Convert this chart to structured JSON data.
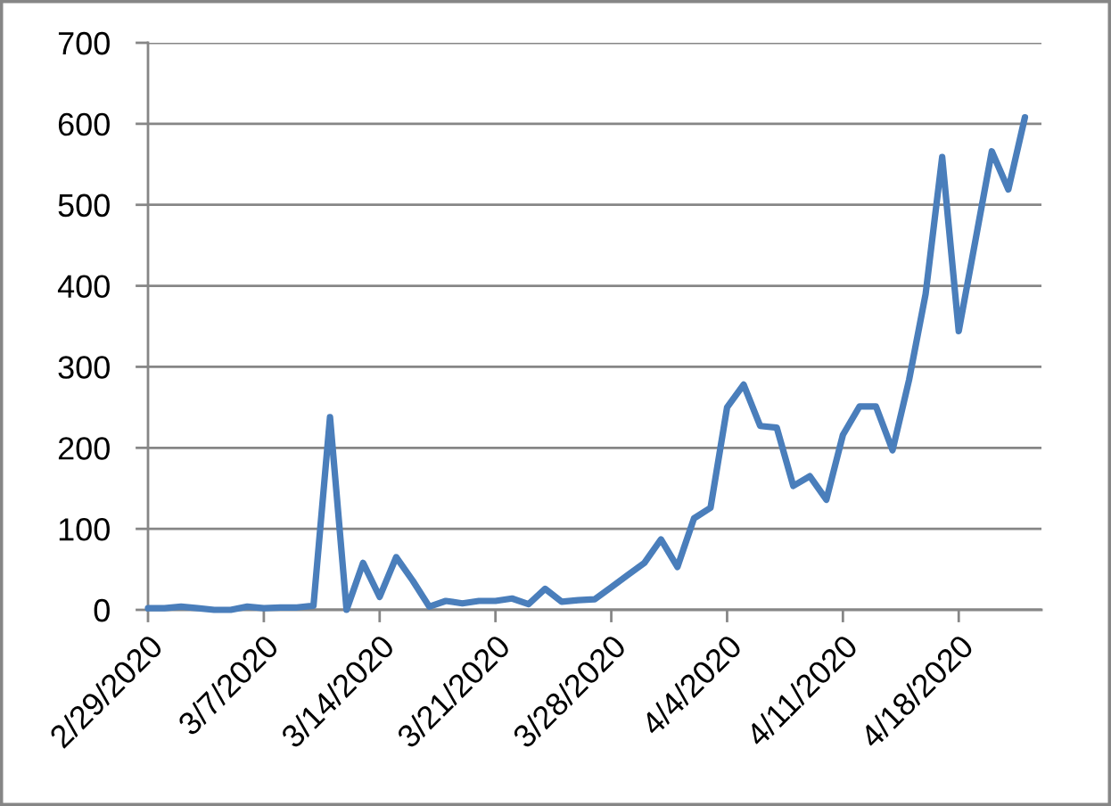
{
  "chart_data": {
    "type": "line",
    "x": [
      "2020-02-29",
      "2020-03-01",
      "2020-03-02",
      "2020-03-03",
      "2020-03-04",
      "2020-03-05",
      "2020-03-06",
      "2020-03-07",
      "2020-03-08",
      "2020-03-09",
      "2020-03-10",
      "2020-03-11",
      "2020-03-12",
      "2020-03-13",
      "2020-03-14",
      "2020-03-15",
      "2020-03-16",
      "2020-03-17",
      "2020-03-18",
      "2020-03-19",
      "2020-03-20",
      "2020-03-21",
      "2020-03-22",
      "2020-03-23",
      "2020-03-24",
      "2020-03-25",
      "2020-03-26",
      "2020-03-27",
      "2020-03-28",
      "2020-03-29",
      "2020-03-30",
      "2020-03-31",
      "2020-04-01",
      "2020-04-02",
      "2020-04-03",
      "2020-04-04",
      "2020-04-05",
      "2020-04-06",
      "2020-04-07",
      "2020-04-08",
      "2020-04-09",
      "2020-04-10",
      "2020-04-11",
      "2020-04-12",
      "2020-04-13",
      "2020-04-14",
      "2020-04-15",
      "2020-04-16",
      "2020-04-17",
      "2020-04-18",
      "2020-04-19",
      "2020-04-20",
      "2020-04-21",
      "2020-04-22"
    ],
    "series": [
      {
        "color": "#4a7ebb",
        "values": [
          2,
          2,
          4,
          2,
          0,
          0,
          4,
          2,
          3,
          3,
          5,
          238,
          0,
          58,
          16,
          65,
          36,
          4,
          11,
          8,
          11,
          11,
          14,
          7,
          26,
          10,
          12,
          13,
          28,
          43,
          58,
          87,
          53,
          113,
          126,
          250,
          278,
          227,
          225,
          153,
          165,
          136,
          216,
          251,
          251,
          197,
          284,
          390,
          559,
          344,
          455,
          566,
          519,
          608
        ]
      }
    ],
    "xlim": [
      "2020-02-29",
      "2020-04-23"
    ],
    "xticks": [
      {
        "value": "2020-02-29",
        "label": "2/29/2020"
      },
      {
        "value": "2020-03-07",
        "label": "3/7/2020"
      },
      {
        "value": "2020-03-14",
        "label": "3/14/2020"
      },
      {
        "value": "2020-03-21",
        "label": "3/21/2020"
      },
      {
        "value": "2020-03-28",
        "label": "3/28/2020"
      },
      {
        "value": "2020-04-04",
        "label": "4/4/2020"
      },
      {
        "value": "2020-04-11",
        "label": "4/11/2020"
      },
      {
        "value": "2020-04-18",
        "label": "4/18/2020"
      }
    ],
    "ylim": [
      0,
      700
    ],
    "yticks": [
      0,
      100,
      200,
      300,
      400,
      500,
      600,
      700
    ],
    "grid": "y",
    "marker": "none",
    "line_style": "solid"
  }
}
